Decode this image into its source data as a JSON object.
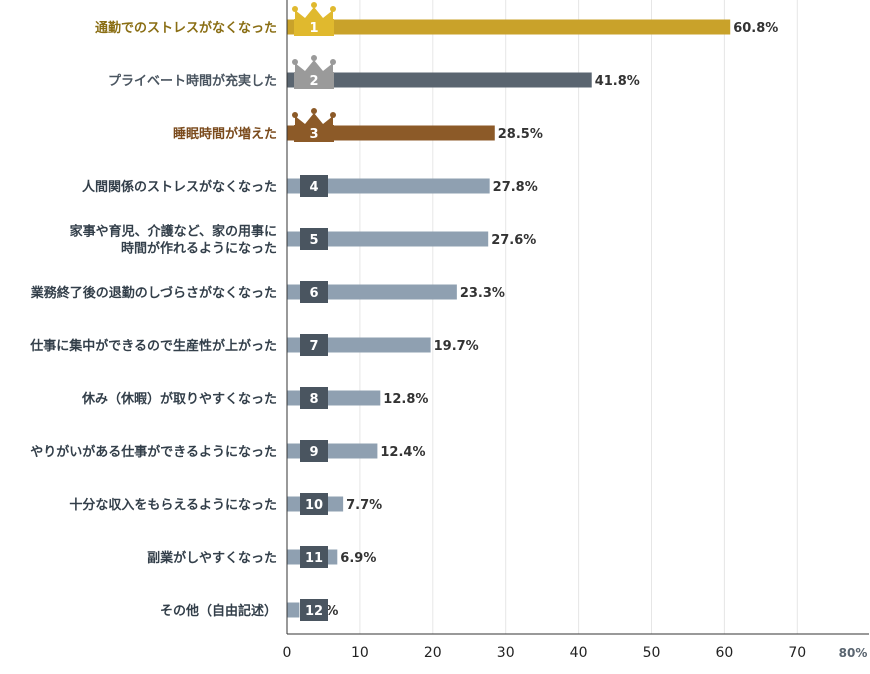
{
  "chart_data": {
    "type": "bar",
    "orientation": "horizontal",
    "categories": [
      "通勤でのストレスがなくなった",
      "プライベート時間が充実した",
      "睡眠時間が増えた",
      "人間関係のストレスがなくなった",
      "家事や育児、介護など、家の用事に時間が作れるようになった",
      "業務終了後の退勤のしづらさがなくなった",
      "仕事に集中ができるので生産性が上がった",
      "休み（休暇）が取りやすくなった",
      "やりがいがある仕事ができるようになった",
      "十分な収入をもらえるようになった",
      "副業がしやすくなった",
      "その他（自由記述）"
    ],
    "category_lines": [
      [
        "通勤でのストレスがなくなった"
      ],
      [
        "プライベート時間が充実した"
      ],
      [
        "睡眠時間が増えた"
      ],
      [
        "人間関係のストレスがなくなった"
      ],
      [
        "家事や育児、介護など、家の用事に",
        "時間が作れるようになった"
      ],
      [
        "業務終了後の退勤のしづらさがなくなった"
      ],
      [
        "仕事に集中ができるので生産性が上がった"
      ],
      [
        "休み（休暇）が取りやすくなった"
      ],
      [
        "やりがいがある仕事ができるようになった"
      ],
      [
        "十分な収入をもらえるようになった"
      ],
      [
        "副業がしやすくなった"
      ],
      [
        "その他（自由記述）"
      ]
    ],
    "values": [
      60.8,
      41.8,
      28.5,
      27.8,
      27.6,
      23.3,
      19.7,
      12.8,
      12.4,
      7.7,
      6.9,
      1.7
    ],
    "value_labels": [
      "60.8%",
      "41.8%",
      "28.5%",
      "27.8%",
      "27.6%",
      "23.3%",
      "19.7%",
      "12.8%",
      "12.4%",
      "7.7%",
      "6.9%",
      "1.7%"
    ],
    "ranks": [
      "1",
      "2",
      "3",
      "4",
      "5",
      "6",
      "7",
      "8",
      "9",
      "10",
      "11",
      "12"
    ],
    "xlim": [
      0,
      80
    ],
    "x_ticks": [
      "0",
      "10",
      "20",
      "30",
      "40",
      "50",
      "60",
      "70"
    ],
    "x_unit_label": "80%",
    "grid": true,
    "colors": {
      "gold": "#c9a22a",
      "silver": "#5a6570",
      "bronze": "#8c5a28",
      "bar_default": "#8fa0b1",
      "badge_default": "#4a5560",
      "label_default": "#333f4a",
      "label_gold": "#8a6e14",
      "label_silver": "#4a5560",
      "label_bronze": "#7a4a1c",
      "crown_gold": "#e0b92e",
      "crown_silver": "#9a9a9a",
      "crown_bronze": "#8c5a28"
    }
  }
}
